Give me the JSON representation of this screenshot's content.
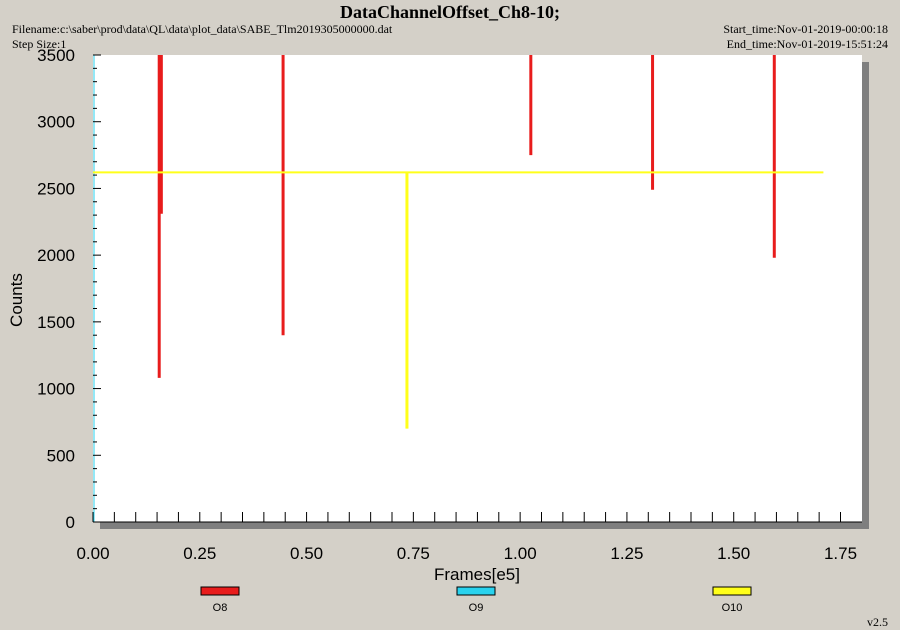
{
  "header": {
    "title": "DataChannelOffset_Ch8-10;",
    "filename": "Filename:c:\\saber\\prod\\data\\QL\\data\\plot_data\\SABE_Tlm2019305000000.dat",
    "step_size": "Step Size:1",
    "start_time": "Start_time:Nov-01-2019-00:00:18",
    "end_time": "End_time:Nov-01-2019-15:51:24"
  },
  "footer": {
    "version": "v2.5"
  },
  "colors": {
    "O8": "#e81c1c",
    "O9": "#29d2ee",
    "O10": "#ffff1a",
    "plot_bg": "#ffffff",
    "frame_shadow": "#7f7f7f"
  },
  "chart_data": {
    "type": "line",
    "title": "DataChannelOffset_Ch8-10;",
    "xlabel": "Frames[e5]",
    "ylabel": "Counts",
    "xlim": [
      0,
      1.8
    ],
    "ylim": [
      0,
      3500
    ],
    "xticks": [
      0,
      0.25,
      0.5,
      0.75,
      1.0,
      1.25,
      1.5,
      1.75
    ],
    "xtick_labels": [
      "0.00",
      "0.25",
      "0.50",
      "0.75",
      "1.00",
      "1.25",
      "1.50",
      "1.75"
    ],
    "yticks": [
      0,
      500,
      1000,
      1500,
      2000,
      2500,
      3000,
      3500
    ],
    "ytick_labels": [
      "0",
      "500",
      "1000",
      "1500",
      "2000",
      "2500",
      "3000",
      "3500"
    ],
    "grid": false,
    "legend_position": "bottom",
    "series": [
      {
        "name": "O8",
        "color": "#e81c1c",
        "spikes": [
          {
            "x": 0.155,
            "y_low": 1080,
            "y_high": 3500
          },
          {
            "x": 0.16,
            "y_low": 2310,
            "y_high": 3500
          },
          {
            "x": 0.445,
            "y_low": 1400,
            "y_high": 3500
          },
          {
            "x": 1.025,
            "y_low": 2750,
            "y_high": 3500
          },
          {
            "x": 1.31,
            "y_low": 2490,
            "y_high": 3500
          },
          {
            "x": 1.595,
            "y_low": 1980,
            "y_high": 3500
          }
        ]
      },
      {
        "name": "O9",
        "color": "#29d2ee",
        "spikes": []
      },
      {
        "name": "O10",
        "color": "#ffff1a",
        "baseline": {
          "x_start": 0,
          "x_end": 1.71,
          "y": 2620
        },
        "spikes": [
          {
            "x": 0.735,
            "y_low": 700,
            "y_high": 2620
          }
        ]
      }
    ]
  }
}
